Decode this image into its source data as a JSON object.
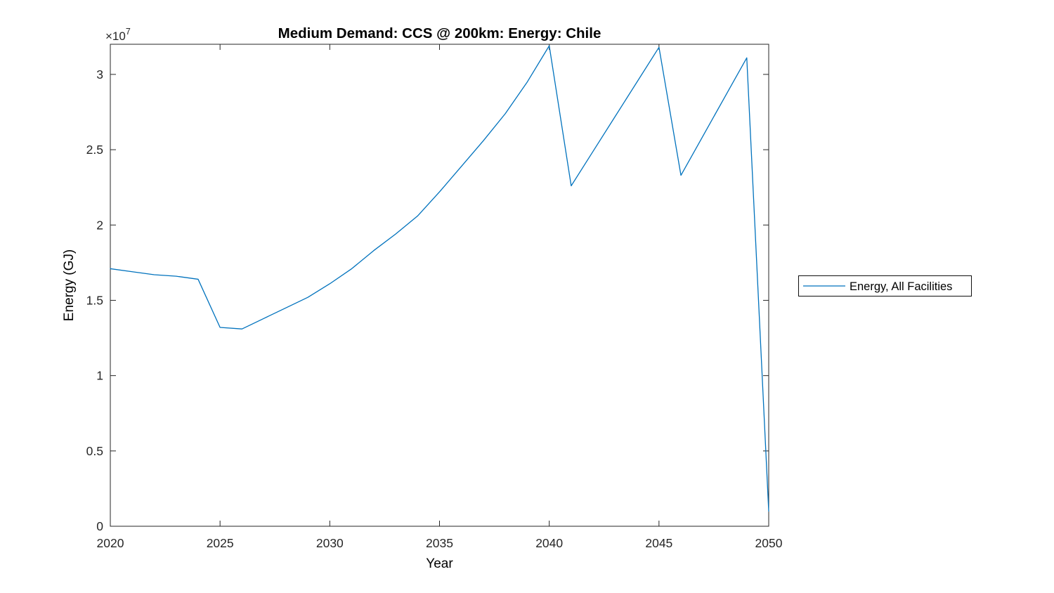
{
  "figure": {
    "background": "#ffffff"
  },
  "chart_data": {
    "type": "line",
    "title": "Medium Demand: CCS @ 200km: Energy: Chile",
    "xlabel": "Year",
    "ylabel": "Energy (GJ)",
    "offset_base": "×10",
    "offset_exponent": "7",
    "xlim": [
      2020,
      2050
    ],
    "ylim": [
      0,
      32000000
    ],
    "grid": false,
    "box": true,
    "tick_direction": "in",
    "axis_color": "#262626",
    "x_ticks": {
      "values": [
        2020,
        2025,
        2030,
        2035,
        2040,
        2045,
        2050
      ],
      "labels": [
        "2020",
        "2025",
        "2030",
        "2035",
        "2040",
        "2045",
        "2050"
      ]
    },
    "y_ticks": {
      "values": [
        0,
        5000000,
        10000000,
        15000000,
        20000000,
        25000000,
        30000000
      ],
      "labels": [
        "0",
        "0.5",
        "1",
        "1.5",
        "2",
        "2.5",
        "3"
      ]
    },
    "legend": {
      "position": "right-outside",
      "entries": [
        "Energy, All Facilities"
      ]
    },
    "series": [
      {
        "name": "Energy, All Facilities",
        "color": "#0072BD",
        "x": [
          2020,
          2021,
          2022,
          2023,
          2024,
          2025,
          2026,
          2027,
          2028,
          2029,
          2030,
          2031,
          2032,
          2033,
          2034,
          2035,
          2036,
          2037,
          2038,
          2039,
          2040,
          2041,
          2042,
          2043,
          2044,
          2045,
          2046,
          2047,
          2048,
          2049,
          2050
        ],
        "y": [
          17100000,
          16900000,
          16700000,
          16600000,
          16400000,
          13200000,
          13100000,
          13800000,
          14500000,
          15200000,
          16100000,
          17100000,
          18300000,
          19400000,
          20600000,
          22200000,
          23900000,
          25600000,
          27400000,
          29500000,
          31900000,
          22600000,
          24900000,
          27200000,
          29500000,
          31800000,
          23300000,
          25900000,
          28500000,
          31100000,
          1000000
        ]
      }
    ]
  }
}
